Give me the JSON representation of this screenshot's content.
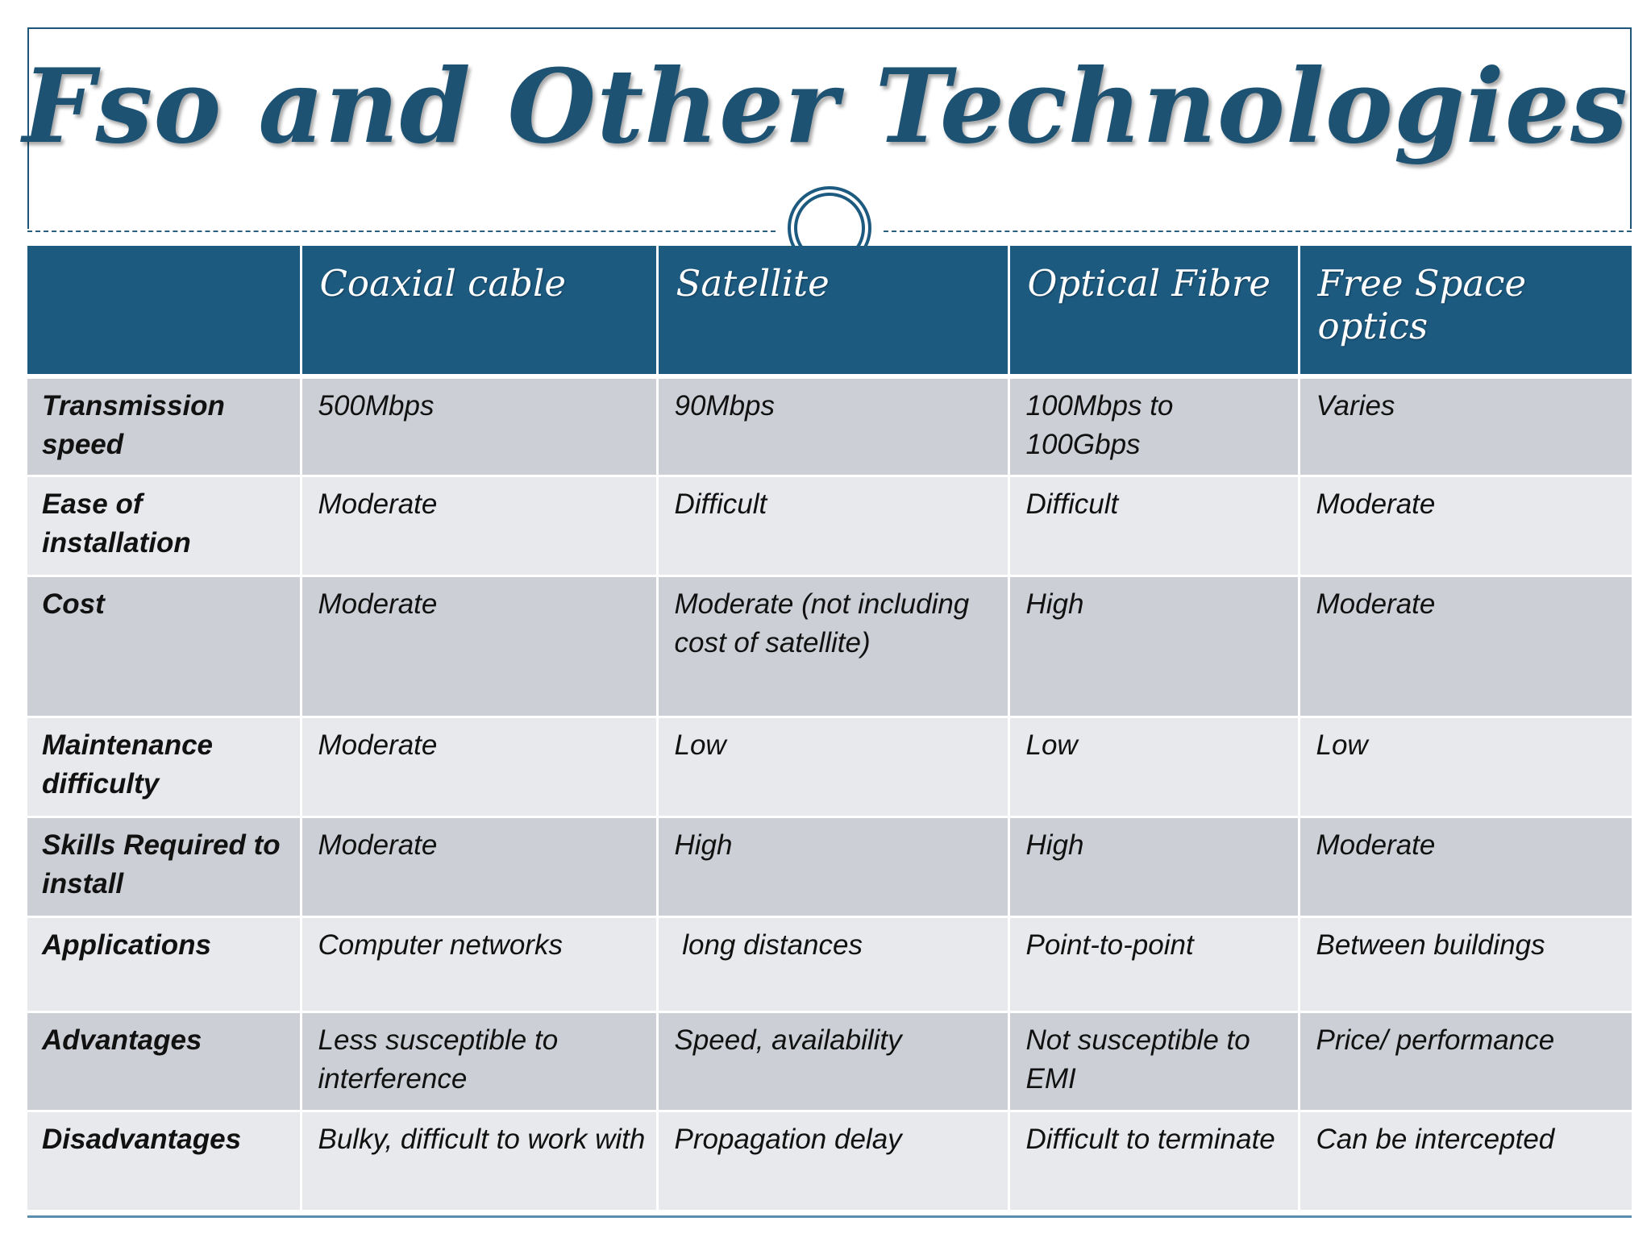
{
  "slide": {
    "title": "Fso and Other Technologies",
    "colors": {
      "title": "#1e5273",
      "header_bg": "#1d5a80",
      "row_dark": "#ccd0d6",
      "row_light": "#e8e9ec"
    }
  },
  "table": {
    "headers": [
      "",
      "Coaxial cable",
      "Satellite",
      "Optical Fibre",
      "Free Space optics"
    ],
    "rows": [
      {
        "label": "Transmission speed",
        "cells": [
          "500Mbps",
          "90Mbps",
          "100Mbps to 100Gbps",
          "Varies"
        ]
      },
      {
        "label": "Ease of installation",
        "cells": [
          "Moderate",
          "Difficult",
          "Difficult",
          "Moderate"
        ]
      },
      {
        "label": "Cost",
        "cells": [
          "Moderate",
          "Moderate (not including cost of satellite)",
          "High",
          "Moderate"
        ]
      },
      {
        "label": "Maintenance difficulty",
        "cells": [
          "Moderate",
          "Low",
          "Low",
          "Low"
        ]
      },
      {
        "label": "Skills Required to install",
        "cells": [
          "Moderate",
          "High",
          "High",
          "Moderate"
        ]
      },
      {
        "label": "Applications",
        "cells": [
          "Computer networks",
          " long distances",
          "Point-to-point",
          "Between buildings"
        ]
      },
      {
        "label": "Advantages",
        "cells": [
          "Less susceptible to interference",
          "Speed, availability",
          "Not susceptible to EMI",
          "Price/ performance"
        ]
      },
      {
        "label": "Disadvantages",
        "cells": [
          "Bulky, difficult to work with",
          "Propagation delay",
          "Difficult to terminate",
          "Can be intercepted"
        ]
      }
    ]
  }
}
